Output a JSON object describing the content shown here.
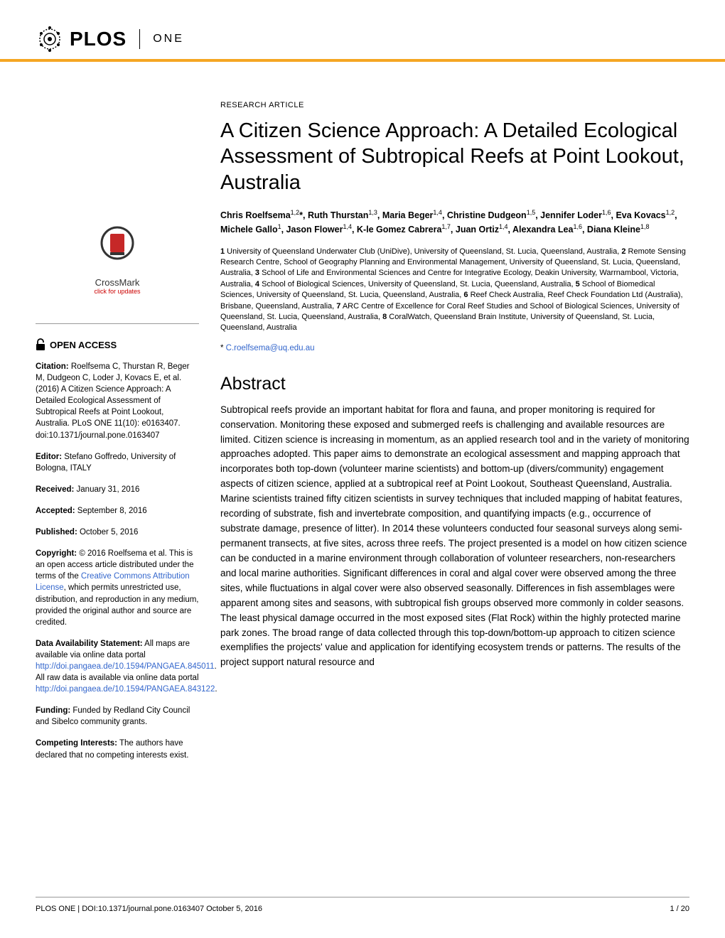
{
  "header": {
    "logo_main": "PLOS",
    "logo_sub": "ONE"
  },
  "sidebar": {
    "crossmark_label": "CrossMark",
    "crossmark_sub": "click for updates",
    "open_access": "OPEN ACCESS",
    "citation_label": "Citation:",
    "citation_text": " Roelfsema C, Thurstan R, Beger M, Dudgeon C, Loder J, Kovacs E, et al. (2016) A Citizen Science Approach: A Detailed Ecological Assessment of Subtropical Reefs at Point Lookout, Australia. PLoS ONE 11(10): e0163407. doi:10.1371/journal.pone.0163407",
    "editor_label": "Editor:",
    "editor_text": " Stefano Goffredo, University of Bologna, ITALY",
    "received_label": "Received:",
    "received_text": " January 31, 2016",
    "accepted_label": "Accepted:",
    "accepted_text": " September 8, 2016",
    "published_label": "Published:",
    "published_text": " October 5, 2016",
    "copyright_label": "Copyright:",
    "copyright_text1": " © 2016 Roelfsema et al. This is an open access article distributed under the terms of the ",
    "copyright_link": "Creative Commons Attribution License",
    "copyright_text2": ", which permits unrestricted use, distribution, and reproduction in any medium, provided the original author and source are credited.",
    "data_label": "Data Availability Statement:",
    "data_text1": " All maps are available via online data portal ",
    "data_link1": "http://doi.pangaea.de/10.1594/PANGAEA.845011",
    "data_text2": ". All raw data is available via online data portal ",
    "data_link2": "http://doi.pangaea.de/10.1594/PANGAEA.843122",
    "data_text3": ".",
    "funding_label": "Funding:",
    "funding_text": " Funded by Redland City Council and Sibelco community grants.",
    "competing_label": "Competing Interests:",
    "competing_text": " The authors have declared that no competing interests exist."
  },
  "article": {
    "type": "RESEARCH ARTICLE",
    "title": "A Citizen Science Approach: A Detailed Ecological Assessment of Subtropical Reefs at Point Lookout, Australia",
    "authors_html": "Chris Roelfsema<sup>1,2</sup>*, Ruth Thurstan<sup>1,3</sup>, Maria Beger<sup>1,4</sup>, Christine Dudgeon<sup>1,5</sup>, Jennifer Loder<sup>1,6</sup>, Eva Kovacs<sup>1,2</sup>, Michele Gallo<sup>1</sup>, Jason Flower<sup>1,4</sup>, K-le Gomez Cabrera<sup>1,7</sup>, Juan Ortiz<sup>1,4</sup>, Alexandra Lea<sup>1,6</sup>, Diana Kleine<sup>1,8</sup>",
    "affiliations_html": "<b>1</b> University of Queensland Underwater Club (UniDive), University of Queensland, St. Lucia, Queensland, Australia, <b>2</b> Remote Sensing Research Centre, School of Geography Planning and Environmental Management, University of Queensland, St. Lucia, Queensland, Australia, <b>3</b> School of Life and Environmental Sciences and Centre for Integrative Ecology, Deakin University, Warrnambool, Victoria, Australia, <b>4</b> School of Biological Sciences, University of Queensland, St. Lucia, Queensland, Australia, <b>5</b> School of Biomedical Sciences, University of Queensland, St. Lucia, Queensland, Australia, <b>6</b> Reef Check Australia, Reef Check Foundation Ltd (Australia), Brisbane, Queensland, Australia, <b>7</b> ARC Centre of Excellence for Coral Reef Studies and School of Biological Sciences, University of Queensland, St. Lucia, Queensland, Australia, <b>8</b> CoralWatch, Queensland Brain Institute, University of Queensland, St. Lucia, Queensland, Australia",
    "correspondence_prefix": "* ",
    "correspondence_email": "C.roelfsema@uq.edu.au",
    "abstract_heading": "Abstract",
    "abstract_text": "Subtropical reefs provide an important habitat for flora and fauna, and proper monitoring is required for conservation. Monitoring these exposed and submerged reefs is challenging and available resources are limited. Citizen science is increasing in momentum, as an applied research tool and in the variety of monitoring approaches adopted. This paper aims to demonstrate an ecological assessment and mapping approach that incorporates both top-down (volunteer marine scientists) and bottom-up (divers/community) engagement aspects of citizen science, applied at a subtropical reef at Point Lookout, Southeast Queensland, Australia. Marine scientists trained fifty citizen scientists in survey techniques that included mapping of habitat features, recording of substrate, fish and invertebrate composition, and quantifying impacts (e.g., occurrence of substrate damage, presence of litter). In 2014 these volunteers conducted four seasonal surveys along semi-permanent transects, at five sites, across three reefs. The project presented is a model on how citizen science can be conducted in a marine environment through collaboration of volunteer researchers, non-researchers and local marine authorities. Significant differences in coral and algal cover were observed among the three sites, while fluctuations in algal cover were also observed seasonally. Differences in fish assemblages were apparent among sites and seasons, with subtropical fish groups observed more commonly in colder seasons. The least physical damage occurred in the most exposed sites (Flat Rock) within the highly protected marine park zones. The broad range of data collected through this top-down/bottom-up approach to citizen science exemplifies the projects' value and application for identifying ecosystem trends or patterns. The results of the project support natural resource and"
  },
  "footer": {
    "left": "PLOS ONE | DOI:10.1371/journal.pone.0163407    October 5, 2016",
    "right": "1 / 20"
  },
  "colors": {
    "accent_orange": "#f5a623",
    "link_blue": "#3366cc",
    "crossmark_red": "#c00"
  }
}
